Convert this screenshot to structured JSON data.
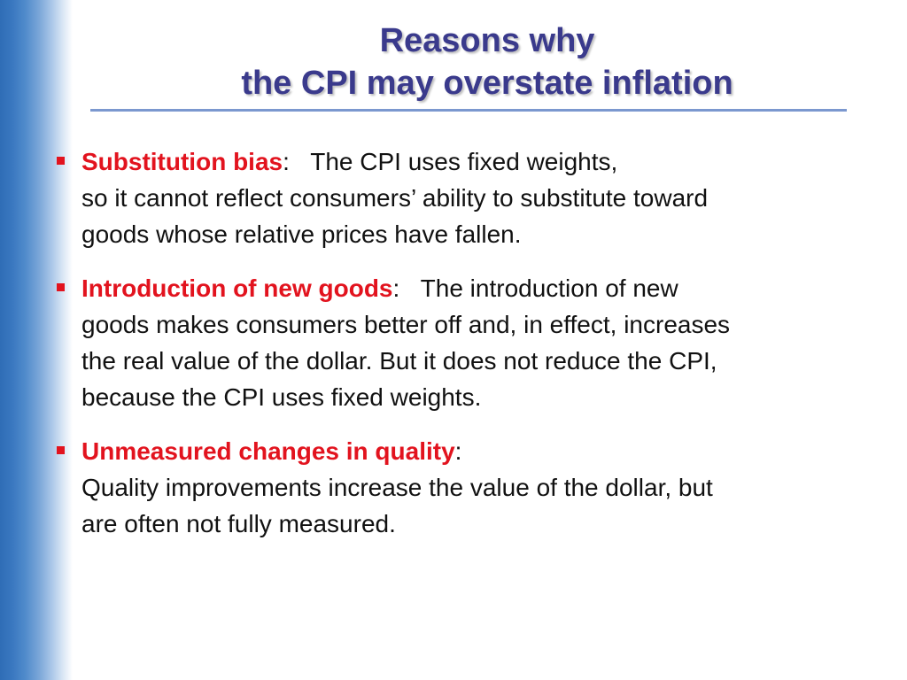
{
  "title": {
    "line1": "Reasons why",
    "line2": "the CPI may overstate inflation"
  },
  "bullets": [
    {
      "term": "Substitution bias",
      "colon": ":",
      "lines": [
        "The CPI uses fixed weights,",
        "so it cannot reflect consumers’ ability to substitute toward",
        "goods whose relative prices have fallen."
      ]
    },
    {
      "term": "Introduction of new goods",
      "colon": ":",
      "lines": [
        "The introduction of new",
        "goods makes consumers better off and, in effect, increases",
        "the real value of the dollar.  But it does not reduce the CPI,",
        "because the CPI uses fixed weights."
      ]
    },
    {
      "term": "Unmeasured changes in quality",
      "colon": ":",
      "lines": [
        "",
        "Quality improvements increase the value of the dollar, but",
        "are often not fully measured."
      ]
    }
  ],
  "colors": {
    "title": "#3a3a8c",
    "term": "#e2131e",
    "rule": "#7b98cf",
    "band": "#2f6db6"
  }
}
